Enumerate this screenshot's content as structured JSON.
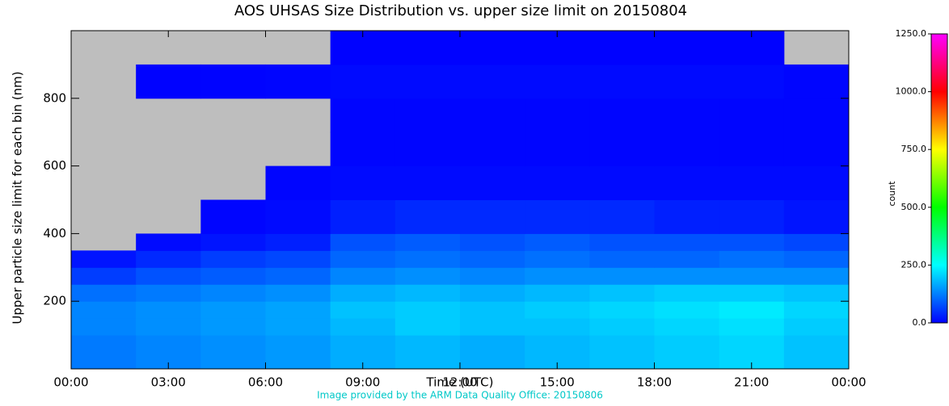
{
  "chart_data": {
    "type": "heatmap",
    "title": "AOS UHSAS Size Distribution vs. upper size limit on 20150804",
    "x_label": "Time (UTC)",
    "y_label": "Upper particle size limit for each bin (nm)",
    "colorbar_label": "count",
    "footer": "Image provided by the ARM Data Quality Office: 20150806",
    "x_edges": [
      0,
      2,
      4,
      6,
      8,
      10,
      12,
      14,
      16,
      18,
      20,
      22,
      24
    ],
    "y_edges": [
      0,
      100,
      150,
      200,
      250,
      300,
      350,
      400,
      500,
      600,
      700,
      800,
      900,
      1000
    ],
    "values": [
      [
        120,
        130,
        140,
        150,
        170,
        180,
        170,
        180,
        190,
        200,
        210,
        190
      ],
      [
        130,
        140,
        150,
        160,
        180,
        200,
        190,
        190,
        200,
        210,
        220,
        200
      ],
      [
        130,
        140,
        150,
        160,
        190,
        200,
        190,
        200,
        210,
        220,
        230,
        210
      ],
      [
        110,
        120,
        130,
        140,
        170,
        180,
        170,
        180,
        190,
        200,
        200,
        190
      ],
      [
        60,
        80,
        90,
        100,
        130,
        140,
        130,
        140,
        140,
        140,
        140,
        140
      ],
      [
        20,
        40,
        60,
        70,
        100,
        110,
        100,
        110,
        100,
        100,
        110,
        100
      ],
      [
        null,
        10,
        20,
        30,
        80,
        90,
        80,
        90,
        80,
        80,
        80,
        70
      ],
      [
        null,
        null,
        5,
        10,
        30,
        40,
        40,
        40,
        40,
        30,
        30,
        20
      ],
      [
        null,
        null,
        null,
        5,
        10,
        10,
        10,
        10,
        10,
        10,
        10,
        10
      ],
      [
        null,
        null,
        null,
        null,
        5,
        5,
        5,
        5,
        5,
        5,
        5,
        5
      ],
      [
        null,
        null,
        null,
        null,
        5,
        5,
        5,
        5,
        5,
        5,
        5,
        5
      ],
      [
        null,
        2,
        3,
        5,
        10,
        10,
        10,
        10,
        10,
        10,
        10,
        5
      ],
      [
        null,
        null,
        null,
        null,
        2,
        2,
        2,
        2,
        2,
        2,
        2,
        null
      ]
    ],
    "xlim": [
      0,
      24
    ],
    "xticks": [
      {
        "value": 0,
        "label": "00:00"
      },
      {
        "value": 3,
        "label": "03:00"
      },
      {
        "value": 6,
        "label": "06:00"
      },
      {
        "value": 9,
        "label": "09:00"
      },
      {
        "value": 12,
        "label": "12:00"
      },
      {
        "value": 15,
        "label": "15:00"
      },
      {
        "value": 18,
        "label": "18:00"
      },
      {
        "value": 21,
        "label": "21:00"
      },
      {
        "value": 24,
        "label": "00:00"
      }
    ],
    "ylim": [
      0,
      1000
    ],
    "yticks": [
      200,
      400,
      600,
      800
    ],
    "clim": [
      0,
      1250
    ],
    "cticks": [
      {
        "value": 0,
        "label": "0.0"
      },
      {
        "value": 250,
        "label": "250.0"
      },
      {
        "value": 500,
        "label": "500.0"
      },
      {
        "value": 750,
        "label": "750.0"
      },
      {
        "value": 1000,
        "label": "1000.0"
      },
      {
        "value": 1250,
        "label": "1250.0"
      }
    ],
    "colormap": [
      "#0000ff",
      "#00ffff",
      "#00ff00",
      "#ffff00",
      "#ff0000",
      "#ff00ff"
    ],
    "missing_color": "#bebebe",
    "footer_color": "#00c8c8"
  }
}
